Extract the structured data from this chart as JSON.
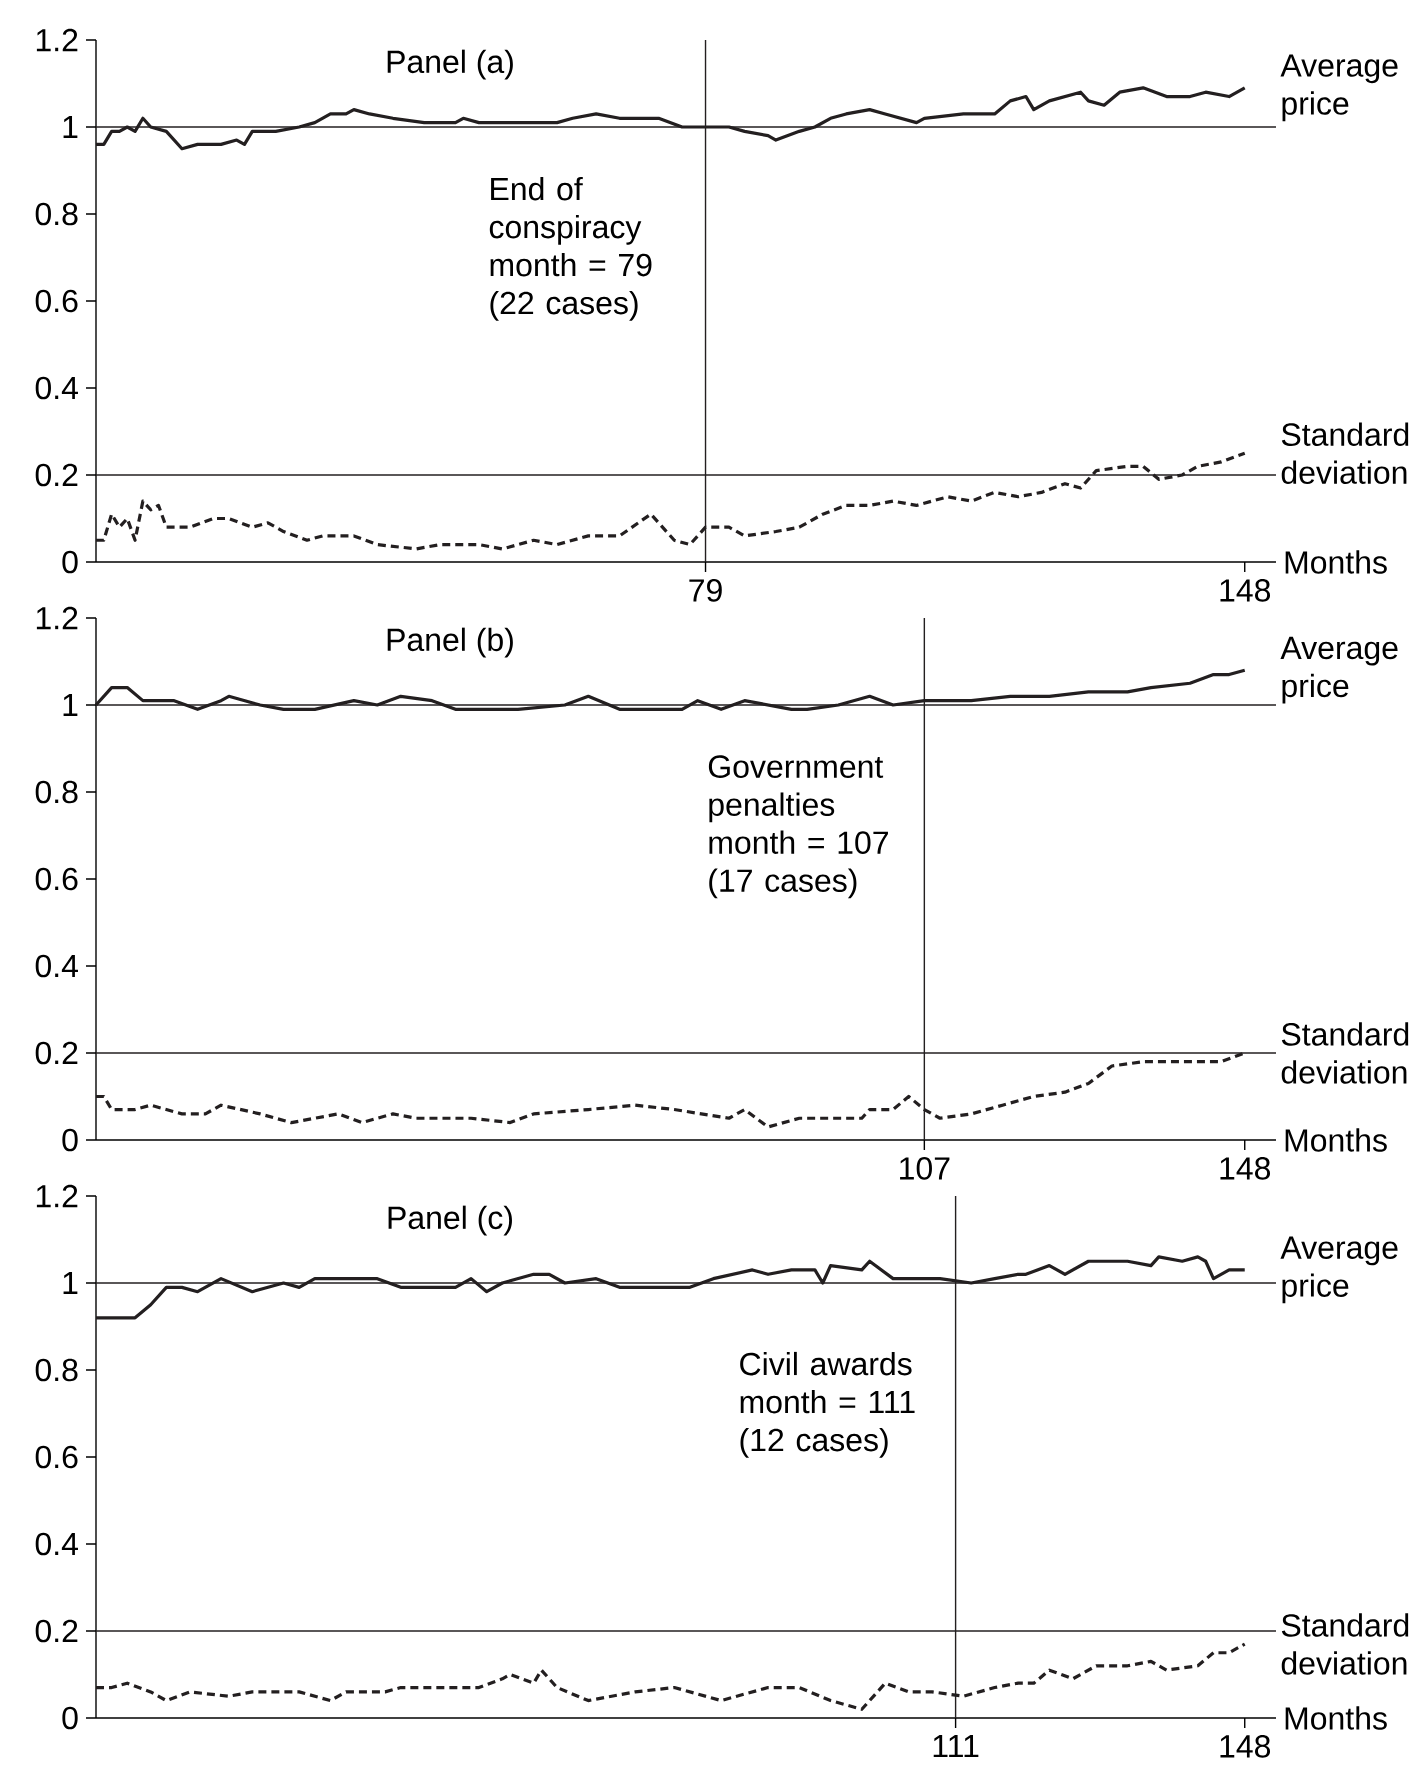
{
  "chart_data": [
    {
      "type": "line",
      "title": "Panel (a)",
      "xlabel": "Months",
      "xlim": [
        1,
        152
      ],
      "ylim": [
        0,
        1.2
      ],
      "xticks": [
        79,
        148
      ],
      "yticks": [
        0,
        0.2,
        0.4,
        0.6,
        0.8,
        1,
        1.2
      ],
      "ref_lines": [
        {
          "axis": "y",
          "value": 1,
          "color": "#231f20"
        },
        {
          "axis": "y",
          "value": 0.2,
          "color": "#231f20"
        },
        {
          "axis": "x",
          "value": 79,
          "label": "End of conspiracy month = 79 (22 cases)",
          "color": "#231f20"
        }
      ],
      "series": [
        {
          "name": "Average price",
          "color": "#231f20",
          "line_style": "solid",
          "x": [
            1,
            2,
            3,
            4,
            5,
            6,
            7,
            8,
            10,
            12,
            14,
            17,
            19,
            20,
            21,
            24,
            27,
            29,
            31,
            33,
            34,
            36,
            39,
            43,
            47,
            48,
            50,
            54,
            60,
            62,
            65,
            68,
            73,
            76,
            79,
            82,
            84,
            87,
            88,
            91,
            93,
            95,
            97,
            100,
            102,
            104,
            106,
            107,
            112,
            116,
            118,
            120,
            121,
            123,
            127,
            128,
            130,
            132,
            135,
            138,
            141,
            143,
            146,
            148
          ],
          "values": [
            0.96,
            0.96,
            0.99,
            0.99,
            1.0,
            0.99,
            1.02,
            1.0,
            0.99,
            0.95,
            0.96,
            0.96,
            0.97,
            0.96,
            0.99,
            0.99,
            1.0,
            1.01,
            1.03,
            1.03,
            1.04,
            1.03,
            1.02,
            1.01,
            1.01,
            1.02,
            1.01,
            1.01,
            1.01,
            1.02,
            1.03,
            1.02,
            1.02,
            1.0,
            1.0,
            1.0,
            0.99,
            0.98,
            0.97,
            0.99,
            1.0,
            1.02,
            1.03,
            1.04,
            1.03,
            1.02,
            1.01,
            1.02,
            1.03,
            1.03,
            1.06,
            1.07,
            1.04,
            1.06,
            1.08,
            1.06,
            1.05,
            1.08,
            1.09,
            1.07,
            1.07,
            1.08,
            1.07,
            1.09
          ]
        },
        {
          "name": "Standard deviation",
          "color": "#231f20",
          "line_style": "dashed",
          "x": [
            1,
            2,
            3,
            4,
            5,
            6,
            7,
            8,
            9,
            10,
            13,
            16,
            18,
            21,
            23,
            25,
            28,
            30,
            34,
            37,
            42,
            45,
            50,
            53,
            57,
            60,
            64,
            68,
            72,
            75,
            77,
            79,
            82,
            84,
            88,
            91,
            94,
            97,
            100,
            103,
            106,
            110,
            113,
            116,
            119,
            122,
            125,
            127,
            129,
            133,
            135,
            137,
            140,
            142,
            145,
            148
          ],
          "values": [
            0.05,
            0.05,
            0.11,
            0.08,
            0.1,
            0.05,
            0.14,
            0.12,
            0.13,
            0.08,
            0.08,
            0.1,
            0.1,
            0.08,
            0.09,
            0.07,
            0.05,
            0.06,
            0.06,
            0.04,
            0.03,
            0.04,
            0.04,
            0.03,
            0.05,
            0.04,
            0.06,
            0.06,
            0.11,
            0.05,
            0.04,
            0.08,
            0.08,
            0.06,
            0.07,
            0.08,
            0.11,
            0.13,
            0.13,
            0.14,
            0.13,
            0.15,
            0.14,
            0.16,
            0.15,
            0.16,
            0.18,
            0.17,
            0.21,
            0.22,
            0.22,
            0.19,
            0.2,
            0.22,
            0.23,
            0.25
          ]
        }
      ]
    },
    {
      "type": "line",
      "title": "Panel (b)",
      "xlabel": "Months",
      "xlim": [
        1,
        152
      ],
      "ylim": [
        0,
        1.2
      ],
      "xticks": [
        107,
        148
      ],
      "yticks": [
        0,
        0.2,
        0.4,
        0.6,
        0.8,
        1,
        1.2
      ],
      "ref_lines": [
        {
          "axis": "y",
          "value": 1,
          "color": "#231f20"
        },
        {
          "axis": "y",
          "value": 0.2,
          "color": "#231f20"
        },
        {
          "axis": "x",
          "value": 107,
          "label": "Government penalties month = 107 (17 cases)",
          "color": "#231f20"
        }
      ],
      "series": [
        {
          "name": "Average price",
          "color": "#231f20",
          "line_style": "solid",
          "x": [
            1,
            3,
            5,
            7,
            11,
            14,
            17,
            18,
            22,
            25,
            29,
            34,
            37,
            40,
            44,
            47,
            55,
            61,
            64,
            68,
            76,
            78,
            81,
            84,
            90,
            92,
            96,
            100,
            103,
            107,
            113,
            118,
            123,
            128,
            133,
            136,
            141,
            144,
            146,
            148
          ],
          "values": [
            1.0,
            1.04,
            1.04,
            1.01,
            1.01,
            0.99,
            1.01,
            1.02,
            1.0,
            0.99,
            0.99,
            1.01,
            1.0,
            1.02,
            1.01,
            0.99,
            0.99,
            1.0,
            1.02,
            0.99,
            0.99,
            1.01,
            0.99,
            1.01,
            0.99,
            0.99,
            1.0,
            1.02,
            1.0,
            1.01,
            1.01,
            1.02,
            1.02,
            1.03,
            1.03,
            1.04,
            1.05,
            1.07,
            1.07,
            1.08
          ]
        },
        {
          "name": "Standard deviation",
          "color": "#231f20",
          "line_style": "dashed",
          "x": [
            1,
            2,
            3,
            6,
            8,
            12,
            15,
            17,
            22,
            26,
            29,
            32,
            35,
            39,
            42,
            49,
            54,
            57,
            64,
            70,
            75,
            82,
            84,
            87,
            91,
            96,
            99,
            100,
            103,
            105,
            107,
            109,
            113,
            117,
            121,
            125,
            128,
            131,
            135,
            139,
            145,
            148
          ],
          "values": [
            0.1,
            0.1,
            0.07,
            0.07,
            0.08,
            0.06,
            0.06,
            0.08,
            0.06,
            0.04,
            0.05,
            0.06,
            0.04,
            0.06,
            0.05,
            0.05,
            0.04,
            0.06,
            0.07,
            0.08,
            0.07,
            0.05,
            0.07,
            0.03,
            0.05,
            0.05,
            0.05,
            0.07,
            0.07,
            0.1,
            0.07,
            0.05,
            0.06,
            0.08,
            0.1,
            0.11,
            0.13,
            0.17,
            0.18,
            0.18,
            0.18,
            0.2
          ]
        }
      ]
    },
    {
      "type": "line",
      "title": "Panel (c)",
      "xlabel": "Months",
      "xlim": [
        1,
        152
      ],
      "ylim": [
        0,
        1.2
      ],
      "xticks": [
        111,
        148
      ],
      "yticks": [
        0,
        0.2,
        0.4,
        0.6,
        0.8,
        1,
        1.2
      ],
      "ref_lines": [
        {
          "axis": "y",
          "value": 1,
          "color": "#231f20"
        },
        {
          "axis": "y",
          "value": 0.2,
          "color": "#231f20"
        },
        {
          "axis": "x",
          "value": 111,
          "label": "Civil awards month = 111 (12 cases)",
          "color": "#231f20"
        }
      ],
      "series": [
        {
          "name": "Average price",
          "color": "#231f20",
          "line_style": "solid",
          "x": [
            1,
            3,
            6,
            8,
            10,
            12,
            14,
            17,
            21,
            25,
            27,
            29,
            30,
            37,
            40,
            47,
            49,
            51,
            53,
            57,
            59,
            61,
            65,
            68,
            72,
            77,
            80,
            85,
            87,
            90,
            93,
            94,
            95,
            99,
            100,
            103,
            107,
            109,
            113,
            116,
            119,
            120,
            123,
            125,
            128,
            133,
            136,
            137,
            140,
            142,
            143,
            144,
            146,
            148
          ],
          "values": [
            0.92,
            0.92,
            0.92,
            0.95,
            0.99,
            0.99,
            0.98,
            1.01,
            0.98,
            1.0,
            0.99,
            1.01,
            1.01,
            1.01,
            0.99,
            0.99,
            1.01,
            0.98,
            1.0,
            1.02,
            1.02,
            1.0,
            1.01,
            0.99,
            0.99,
            0.99,
            1.01,
            1.03,
            1.02,
            1.03,
            1.03,
            1.0,
            1.04,
            1.03,
            1.05,
            1.01,
            1.01,
            1.01,
            1.0,
            1.01,
            1.02,
            1.02,
            1.04,
            1.02,
            1.05,
            1.05,
            1.04,
            1.06,
            1.05,
            1.06,
            1.05,
            1.01,
            1.03,
            1.03
          ]
        },
        {
          "name": "Standard deviation",
          "color": "#231f20",
          "line_style": "dashed",
          "x": [
            1,
            3,
            5,
            8,
            10,
            13,
            18,
            21,
            27,
            31,
            33,
            38,
            40,
            45,
            50,
            53,
            54,
            57,
            58,
            60,
            64,
            70,
            75,
            81,
            87,
            91,
            95,
            99,
            102,
            105,
            108,
            112,
            116,
            119,
            121,
            123,
            126,
            129,
            133,
            136,
            138,
            142,
            144,
            146,
            148
          ],
          "values": [
            0.07,
            0.07,
            0.08,
            0.06,
            0.04,
            0.06,
            0.05,
            0.06,
            0.06,
            0.04,
            0.06,
            0.06,
            0.07,
            0.07,
            0.07,
            0.09,
            0.1,
            0.08,
            0.11,
            0.07,
            0.04,
            0.06,
            0.07,
            0.04,
            0.07,
            0.07,
            0.04,
            0.02,
            0.08,
            0.06,
            0.06,
            0.05,
            0.07,
            0.08,
            0.08,
            0.11,
            0.09,
            0.12,
            0.12,
            0.13,
            0.11,
            0.12,
            0.15,
            0.15,
            0.17
          ]
        }
      ]
    }
  ]
}
